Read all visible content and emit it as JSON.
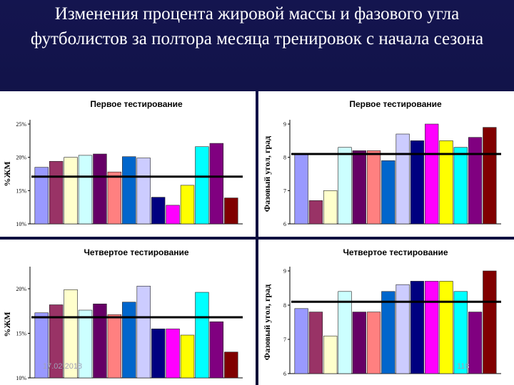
{
  "slide": {
    "title": "Изменения процента жировой массы и фазового угла футболистов за полтора месяца тренировок с начала сезона",
    "footer_date": "17.02.2018",
    "footer_page": "118",
    "background": "#0f1040"
  },
  "bar_colors": [
    "#9999ff",
    "#993366",
    "#ffffcc",
    "#ccffff",
    "#660066",
    "#ff8080",
    "#0066cc",
    "#ccccff",
    "#000080",
    "#ff00ff",
    "#ffff00",
    "#00ffff",
    "#800080",
    "#800000"
  ],
  "chart_data": [
    {
      "type": "bar",
      "title": "Первое тестирование",
      "ylabel": "%ЖМ",
      "ylim": [
        10,
        25
      ],
      "yticks": [
        10,
        15,
        20,
        25
      ],
      "ytick_labels": [
        "10%",
        "15%",
        "20%",
        "25%"
      ],
      "values": [
        18.5,
        19.4,
        20.0,
        20.3,
        20.5,
        17.8,
        20.1,
        19.9,
        14.0,
        12.8,
        15.8,
        21.6,
        22.1,
        13.9
      ],
      "reference_line": 17.1
    },
    {
      "type": "bar",
      "title": "Первое тестирование",
      "ylabel": "Фазовый угол, град",
      "ylim": [
        6,
        9
      ],
      "yticks": [
        6,
        7,
        8,
        9
      ],
      "ytick_labels": [
        "6",
        "7",
        "8",
        "9"
      ],
      "values": [
        8.1,
        6.7,
        7.0,
        8.3,
        8.2,
        8.2,
        7.9,
        8.7,
        8.5,
        9.0,
        8.5,
        8.3,
        8.6,
        8.9
      ],
      "reference_line": 8.1
    },
    {
      "type": "bar",
      "title": "Четвертое тестирование",
      "ylabel": "%ЖМ",
      "ylim": [
        10,
        22
      ],
      "yticks": [
        10,
        15,
        20
      ],
      "ytick_labels": [
        "10%",
        "15%",
        "20%"
      ],
      "values": [
        17.3,
        18.2,
        19.9,
        17.6,
        18.3,
        17.1,
        18.5,
        20.3,
        15.5,
        15.5,
        14.8,
        19.6,
        16.3,
        12.9
      ],
      "reference_line": 16.8
    },
    {
      "type": "bar",
      "title": "Четвертое тестирование",
      "ylabel": "Фазовый угол, град",
      "ylim": [
        6,
        9
      ],
      "yticks": [
        6,
        7,
        8,
        9
      ],
      "ytick_labels": [
        "6",
        "7",
        "8",
        "9"
      ],
      "values": [
        7.9,
        7.8,
        7.1,
        8.4,
        7.8,
        7.8,
        8.4,
        8.6,
        8.7,
        8.7,
        8.7,
        8.4,
        7.8,
        9.0
      ],
      "reference_line": 8.1
    }
  ]
}
